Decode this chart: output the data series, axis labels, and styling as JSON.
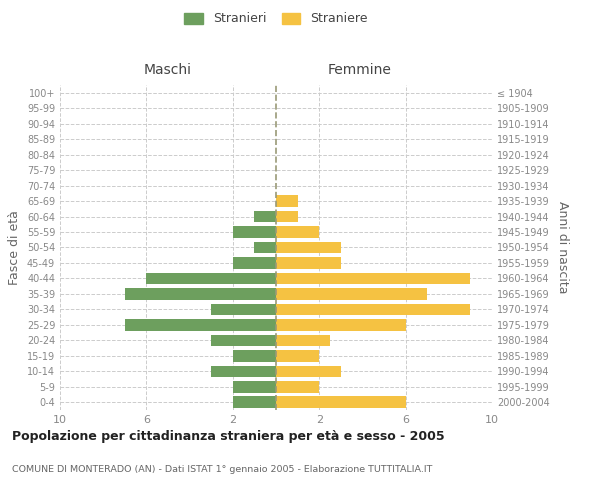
{
  "age_groups": [
    "0-4",
    "5-9",
    "10-14",
    "15-19",
    "20-24",
    "25-29",
    "30-34",
    "35-39",
    "40-44",
    "45-49",
    "50-54",
    "55-59",
    "60-64",
    "65-69",
    "70-74",
    "75-79",
    "80-84",
    "85-89",
    "90-94",
    "95-99",
    "100+"
  ],
  "birth_years": [
    "2000-2004",
    "1995-1999",
    "1990-1994",
    "1985-1989",
    "1980-1984",
    "1975-1979",
    "1970-1974",
    "1965-1969",
    "1960-1964",
    "1955-1959",
    "1950-1954",
    "1945-1949",
    "1940-1944",
    "1935-1939",
    "1930-1934",
    "1925-1929",
    "1920-1924",
    "1915-1919",
    "1910-1914",
    "1905-1909",
    "≤ 1904"
  ],
  "maschi": [
    2,
    2,
    3,
    2,
    3,
    7,
    3,
    7,
    6,
    2,
    1,
    2,
    1,
    0,
    0,
    0,
    0,
    0,
    0,
    0,
    0
  ],
  "femmine": [
    6,
    2,
    3,
    2,
    2.5,
    6,
    9,
    7,
    9,
    3,
    3,
    2,
    1,
    1,
    0,
    0,
    0,
    0,
    0,
    0,
    0
  ],
  "color_maschi": "#6d9f5e",
  "color_femmine": "#f5c242",
  "title": "Popolazione per cittadinanza straniera per età e sesso - 2005",
  "subtitle": "COMUNE DI MONTERADO (AN) - Dati ISTAT 1° gennaio 2005 - Elaborazione TUTTITALIA.IT",
  "ylabel_left": "Fasce di età",
  "ylabel_right": "Anni di nascita",
  "legend_stranieri": "Stranieri",
  "legend_straniere": "Straniere",
  "xlim": 10,
  "background_color": "#ffffff",
  "grid_color": "#cccccc",
  "maschi_header": "Maschi",
  "femmine_header": "Femmine",
  "xticks": [
    -10,
    -6,
    -2,
    2,
    6,
    10
  ],
  "xticklabels": [
    "10",
    "6",
    "2",
    "2",
    "6",
    "10"
  ]
}
